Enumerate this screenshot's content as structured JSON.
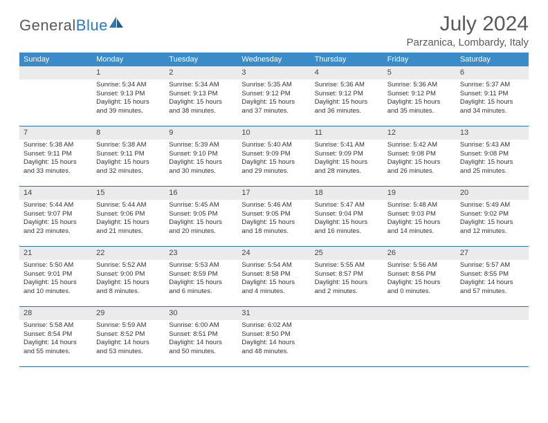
{
  "logo": {
    "part1": "General",
    "part2": "Blue"
  },
  "title": "July 2024",
  "location": "Parzanica, Lombardy, Italy",
  "colors": {
    "header_bg": "#3b8bc8",
    "header_text": "#ffffff",
    "daynum_bg": "#ebebeb",
    "rule": "#2a6fa8",
    "title_color": "#58595b",
    "logo_gray": "#58595b",
    "logo_blue": "#2a7ab9"
  },
  "weekdays": [
    "Sunday",
    "Monday",
    "Tuesday",
    "Wednesday",
    "Thursday",
    "Friday",
    "Saturday"
  ],
  "weeks": [
    [
      {
        "n": "",
        "sunrise": "",
        "sunset": "",
        "daylight": ""
      },
      {
        "n": "1",
        "sunrise": "Sunrise: 5:34 AM",
        "sunset": "Sunset: 9:13 PM",
        "daylight": "Daylight: 15 hours and 39 minutes."
      },
      {
        "n": "2",
        "sunrise": "Sunrise: 5:34 AM",
        "sunset": "Sunset: 9:13 PM",
        "daylight": "Daylight: 15 hours and 38 minutes."
      },
      {
        "n": "3",
        "sunrise": "Sunrise: 5:35 AM",
        "sunset": "Sunset: 9:12 PM",
        "daylight": "Daylight: 15 hours and 37 minutes."
      },
      {
        "n": "4",
        "sunrise": "Sunrise: 5:36 AM",
        "sunset": "Sunset: 9:12 PM",
        "daylight": "Daylight: 15 hours and 36 minutes."
      },
      {
        "n": "5",
        "sunrise": "Sunrise: 5:36 AM",
        "sunset": "Sunset: 9:12 PM",
        "daylight": "Daylight: 15 hours and 35 minutes."
      },
      {
        "n": "6",
        "sunrise": "Sunrise: 5:37 AM",
        "sunset": "Sunset: 9:11 PM",
        "daylight": "Daylight: 15 hours and 34 minutes."
      }
    ],
    [
      {
        "n": "7",
        "sunrise": "Sunrise: 5:38 AM",
        "sunset": "Sunset: 9:11 PM",
        "daylight": "Daylight: 15 hours and 33 minutes."
      },
      {
        "n": "8",
        "sunrise": "Sunrise: 5:38 AM",
        "sunset": "Sunset: 9:11 PM",
        "daylight": "Daylight: 15 hours and 32 minutes."
      },
      {
        "n": "9",
        "sunrise": "Sunrise: 5:39 AM",
        "sunset": "Sunset: 9:10 PM",
        "daylight": "Daylight: 15 hours and 30 minutes."
      },
      {
        "n": "10",
        "sunrise": "Sunrise: 5:40 AM",
        "sunset": "Sunset: 9:09 PM",
        "daylight": "Daylight: 15 hours and 29 minutes."
      },
      {
        "n": "11",
        "sunrise": "Sunrise: 5:41 AM",
        "sunset": "Sunset: 9:09 PM",
        "daylight": "Daylight: 15 hours and 28 minutes."
      },
      {
        "n": "12",
        "sunrise": "Sunrise: 5:42 AM",
        "sunset": "Sunset: 9:08 PM",
        "daylight": "Daylight: 15 hours and 26 minutes."
      },
      {
        "n": "13",
        "sunrise": "Sunrise: 5:43 AM",
        "sunset": "Sunset: 9:08 PM",
        "daylight": "Daylight: 15 hours and 25 minutes."
      }
    ],
    [
      {
        "n": "14",
        "sunrise": "Sunrise: 5:44 AM",
        "sunset": "Sunset: 9:07 PM",
        "daylight": "Daylight: 15 hours and 23 minutes."
      },
      {
        "n": "15",
        "sunrise": "Sunrise: 5:44 AM",
        "sunset": "Sunset: 9:06 PM",
        "daylight": "Daylight: 15 hours and 21 minutes."
      },
      {
        "n": "16",
        "sunrise": "Sunrise: 5:45 AM",
        "sunset": "Sunset: 9:05 PM",
        "daylight": "Daylight: 15 hours and 20 minutes."
      },
      {
        "n": "17",
        "sunrise": "Sunrise: 5:46 AM",
        "sunset": "Sunset: 9:05 PM",
        "daylight": "Daylight: 15 hours and 18 minutes."
      },
      {
        "n": "18",
        "sunrise": "Sunrise: 5:47 AM",
        "sunset": "Sunset: 9:04 PM",
        "daylight": "Daylight: 15 hours and 16 minutes."
      },
      {
        "n": "19",
        "sunrise": "Sunrise: 5:48 AM",
        "sunset": "Sunset: 9:03 PM",
        "daylight": "Daylight: 15 hours and 14 minutes."
      },
      {
        "n": "20",
        "sunrise": "Sunrise: 5:49 AM",
        "sunset": "Sunset: 9:02 PM",
        "daylight": "Daylight: 15 hours and 12 minutes."
      }
    ],
    [
      {
        "n": "21",
        "sunrise": "Sunrise: 5:50 AM",
        "sunset": "Sunset: 9:01 PM",
        "daylight": "Daylight: 15 hours and 10 minutes."
      },
      {
        "n": "22",
        "sunrise": "Sunrise: 5:52 AM",
        "sunset": "Sunset: 9:00 PM",
        "daylight": "Daylight: 15 hours and 8 minutes."
      },
      {
        "n": "23",
        "sunrise": "Sunrise: 5:53 AM",
        "sunset": "Sunset: 8:59 PM",
        "daylight": "Daylight: 15 hours and 6 minutes."
      },
      {
        "n": "24",
        "sunrise": "Sunrise: 5:54 AM",
        "sunset": "Sunset: 8:58 PM",
        "daylight": "Daylight: 15 hours and 4 minutes."
      },
      {
        "n": "25",
        "sunrise": "Sunrise: 5:55 AM",
        "sunset": "Sunset: 8:57 PM",
        "daylight": "Daylight: 15 hours and 2 minutes."
      },
      {
        "n": "26",
        "sunrise": "Sunrise: 5:56 AM",
        "sunset": "Sunset: 8:56 PM",
        "daylight": "Daylight: 15 hours and 0 minutes."
      },
      {
        "n": "27",
        "sunrise": "Sunrise: 5:57 AM",
        "sunset": "Sunset: 8:55 PM",
        "daylight": "Daylight: 14 hours and 57 minutes."
      }
    ],
    [
      {
        "n": "28",
        "sunrise": "Sunrise: 5:58 AM",
        "sunset": "Sunset: 8:54 PM",
        "daylight": "Daylight: 14 hours and 55 minutes."
      },
      {
        "n": "29",
        "sunrise": "Sunrise: 5:59 AM",
        "sunset": "Sunset: 8:52 PM",
        "daylight": "Daylight: 14 hours and 53 minutes."
      },
      {
        "n": "30",
        "sunrise": "Sunrise: 6:00 AM",
        "sunset": "Sunset: 8:51 PM",
        "daylight": "Daylight: 14 hours and 50 minutes."
      },
      {
        "n": "31",
        "sunrise": "Sunrise: 6:02 AM",
        "sunset": "Sunset: 8:50 PM",
        "daylight": "Daylight: 14 hours and 48 minutes."
      },
      {
        "n": "",
        "sunrise": "",
        "sunset": "",
        "daylight": ""
      },
      {
        "n": "",
        "sunrise": "",
        "sunset": "",
        "daylight": ""
      },
      {
        "n": "",
        "sunrise": "",
        "sunset": "",
        "daylight": ""
      }
    ]
  ]
}
